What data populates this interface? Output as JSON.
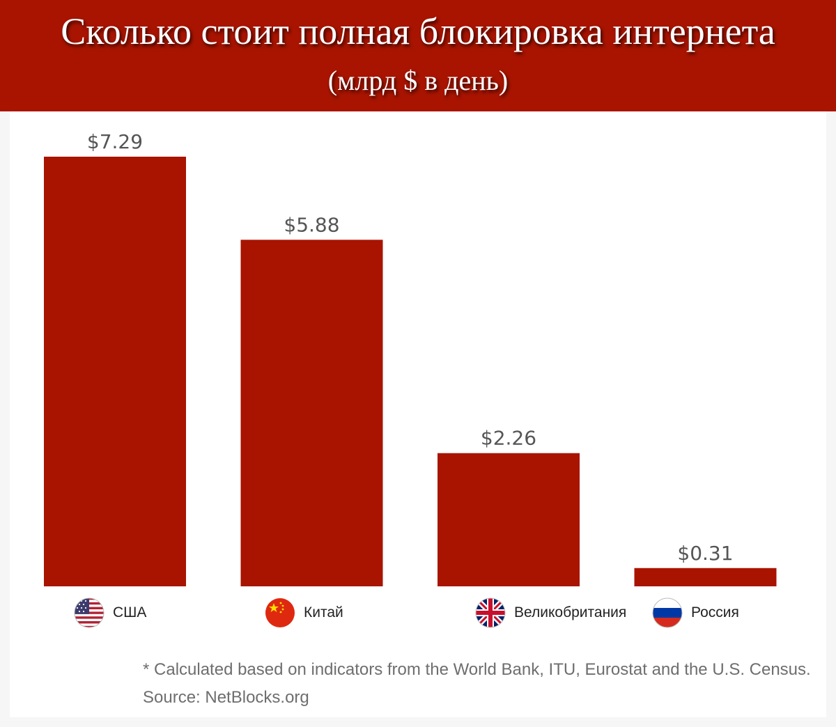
{
  "header": {
    "title": "Сколько стоит полная блокировка интернета",
    "subtitle": "(млрд $ в день)"
  },
  "chart_data": {
    "type": "bar",
    "categories": [
      "США",
      "Китай",
      "Великобритания",
      "Россия"
    ],
    "values": [
      7.29,
      5.88,
      2.26,
      0.31
    ],
    "value_labels": [
      "$7.29",
      "$5.88",
      "$2.26",
      "$0.31"
    ],
    "title": "Сколько стоит полная блокировка интернета",
    "subtitle": "(млрд $ в день)",
    "xlabel": "",
    "ylabel": "",
    "ylim": [
      0,
      7.29
    ],
    "grid": false,
    "legend": "none",
    "bar_color": "#a81400"
  },
  "flags": [
    "us-flag-icon",
    "china-flag-icon",
    "uk-flag-icon",
    "russia-flag-icon"
  ],
  "footer": {
    "note": "* Calculated based on indicators from the World Bank, ITU, Eurostat and the U.S. Census.",
    "source": "Source: NetBlocks.org"
  },
  "colors": {
    "header_bg": "#a81400",
    "bar": "#a81400",
    "value_text": "#555555",
    "footer_text": "#6e6e6e"
  }
}
